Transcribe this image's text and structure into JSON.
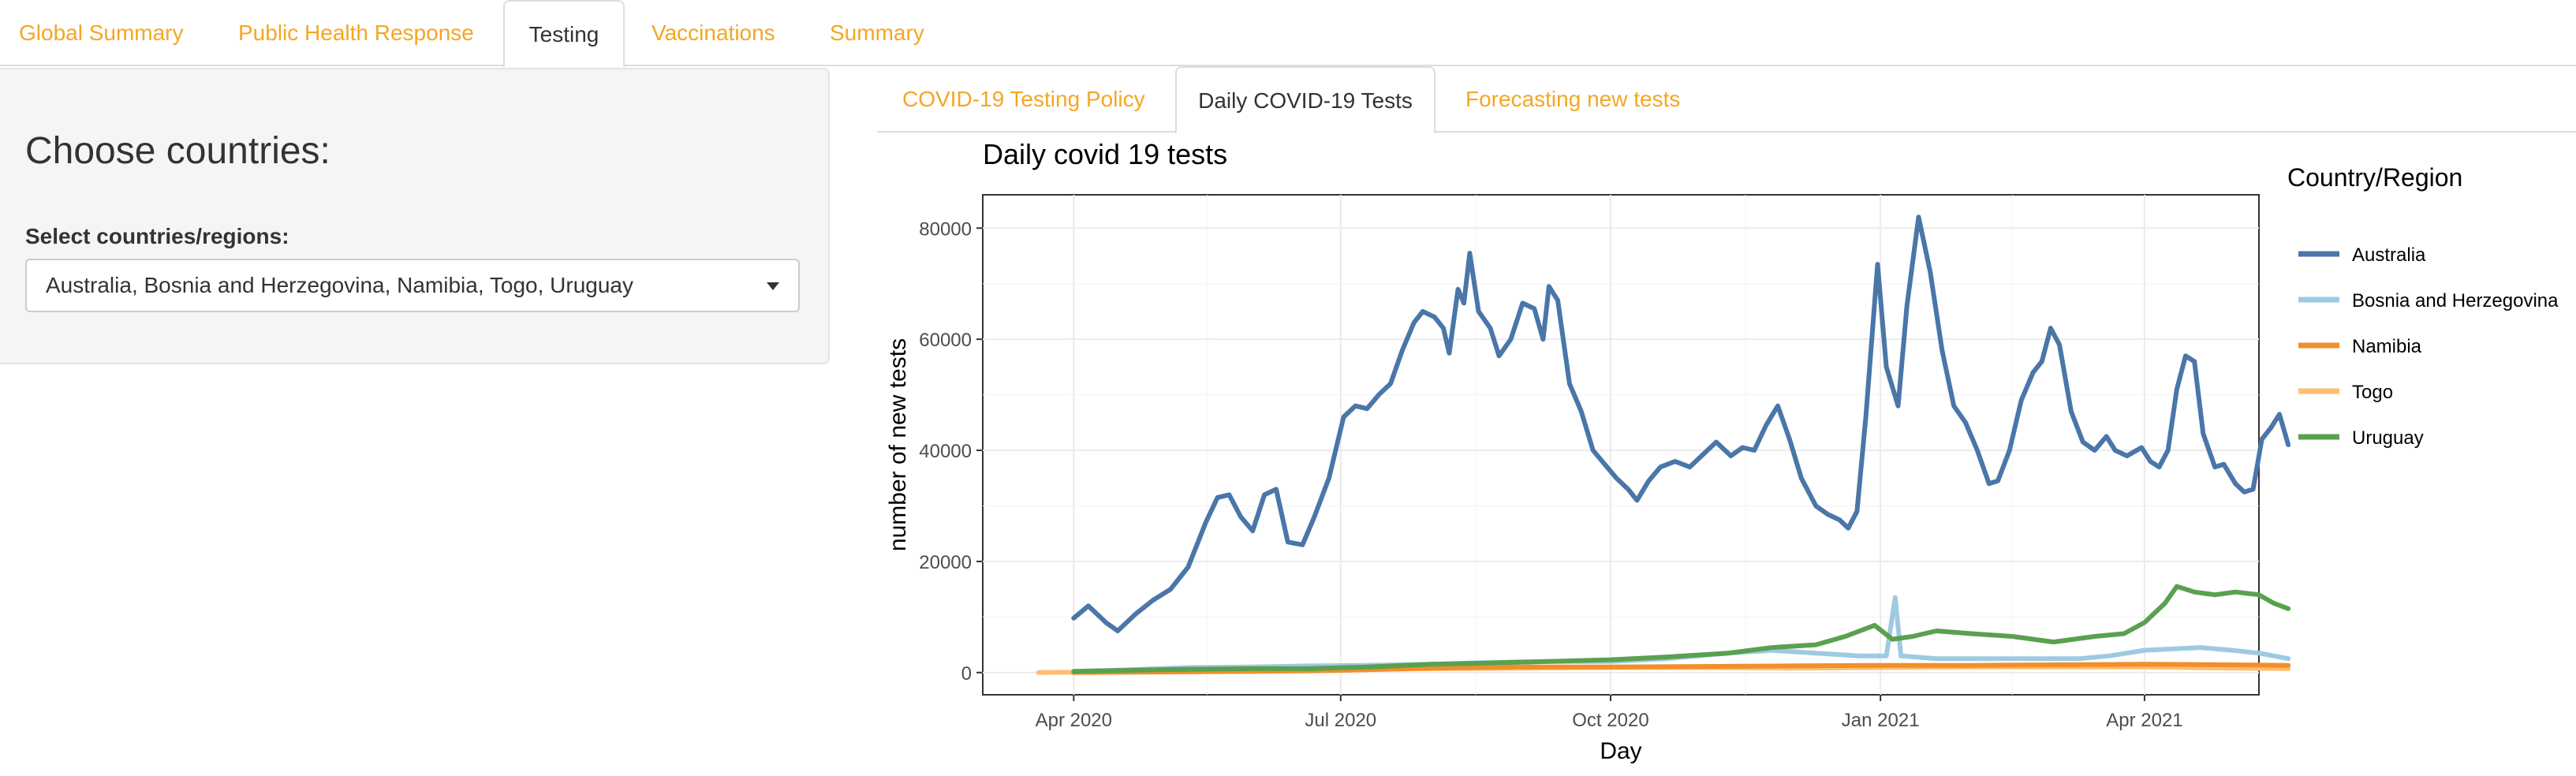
{
  "nav": {
    "tabs": [
      {
        "label": "Global Summary",
        "active": false
      },
      {
        "label": "Public Health Response",
        "active": false
      },
      {
        "label": "Testing",
        "active": true
      },
      {
        "label": "Vaccinations",
        "active": false
      },
      {
        "label": "Summary",
        "active": false
      }
    ]
  },
  "sidebar": {
    "heading": "Choose countries:",
    "select_label": "Select countries/regions:",
    "select_value": "Australia, Bosnia and Herzegovina, Namibia, Togo, Uruguay"
  },
  "subnav": {
    "tabs": [
      {
        "label": "COVID-19 Testing Policy",
        "active": false
      },
      {
        "label": "Daily COVID-19 Tests",
        "active": true
      },
      {
        "label": "Forecasting new tests",
        "active": false
      }
    ]
  },
  "colors": {
    "accent": "#f5a623",
    "panel_background": "#ffffff",
    "grid": "#ebebeb"
  },
  "chart_data": {
    "type": "line",
    "title": "Daily covid 19 tests",
    "xlabel": "Day",
    "ylabel": "number of new tests",
    "xlim": [
      "2020-03-01",
      "2021-05-10"
    ],
    "ylim": [
      -4000,
      86000
    ],
    "x_ticks": [
      {
        "date": "2020-04-01",
        "label": "Apr 2020"
      },
      {
        "date": "2020-07-01",
        "label": "Jul 2020"
      },
      {
        "date": "2020-10-01",
        "label": "Oct 2020"
      },
      {
        "date": "2021-01-01",
        "label": "Jan 2021"
      },
      {
        "date": "2021-04-01",
        "label": "Apr 2021"
      }
    ],
    "y_ticks": [
      0,
      20000,
      40000,
      60000,
      80000
    ],
    "y_tick_labels": [
      "0",
      "20000",
      "40000",
      "60000",
      "80000"
    ],
    "grid": true,
    "legend": {
      "title": "Country/Region",
      "placement": "right"
    },
    "series": [
      {
        "name": "Australia",
        "color": "#4a76a8",
        "points": [
          [
            "2020-04-01",
            9800
          ],
          [
            "2020-04-06",
            12000
          ],
          [
            "2020-04-12",
            9000
          ],
          [
            "2020-04-16",
            7500
          ],
          [
            "2020-04-22",
            10500
          ],
          [
            "2020-04-28",
            13000
          ],
          [
            "2020-05-04",
            15000
          ],
          [
            "2020-05-10",
            19000
          ],
          [
            "2020-05-16",
            27000
          ],
          [
            "2020-05-20",
            31500
          ],
          [
            "2020-05-24",
            32000
          ],
          [
            "2020-05-28",
            28000
          ],
          [
            "2020-06-01",
            25500
          ],
          [
            "2020-06-05",
            32000
          ],
          [
            "2020-06-09",
            33000
          ],
          [
            "2020-06-13",
            23500
          ],
          [
            "2020-06-18",
            23000
          ],
          [
            "2020-06-22",
            28000
          ],
          [
            "2020-06-27",
            35000
          ],
          [
            "2020-07-02",
            46000
          ],
          [
            "2020-07-06",
            48000
          ],
          [
            "2020-07-10",
            47500
          ],
          [
            "2020-07-14",
            50000
          ],
          [
            "2020-07-18",
            52000
          ],
          [
            "2020-07-22",
            58000
          ],
          [
            "2020-07-26",
            63000
          ],
          [
            "2020-07-29",
            65000
          ],
          [
            "2020-08-02",
            64000
          ],
          [
            "2020-08-05",
            62000
          ],
          [
            "2020-08-07",
            57500
          ],
          [
            "2020-08-10",
            69000
          ],
          [
            "2020-08-12",
            66500
          ],
          [
            "2020-08-14",
            75500
          ],
          [
            "2020-08-17",
            65000
          ],
          [
            "2020-08-21",
            62000
          ],
          [
            "2020-08-24",
            57000
          ],
          [
            "2020-08-28",
            60000
          ],
          [
            "2020-09-01",
            66500
          ],
          [
            "2020-09-05",
            65500
          ],
          [
            "2020-09-08",
            60000
          ],
          [
            "2020-09-10",
            69500
          ],
          [
            "2020-09-13",
            67000
          ],
          [
            "2020-09-17",
            52000
          ],
          [
            "2020-09-21",
            47000
          ],
          [
            "2020-09-25",
            40000
          ],
          [
            "2020-09-29",
            37500
          ],
          [
            "2020-10-03",
            35000
          ],
          [
            "2020-10-07",
            33000
          ],
          [
            "2020-10-10",
            31000
          ],
          [
            "2020-10-14",
            34500
          ],
          [
            "2020-10-18",
            37000
          ],
          [
            "2020-10-23",
            38000
          ],
          [
            "2020-10-28",
            37000
          ],
          [
            "2020-11-02",
            39500
          ],
          [
            "2020-11-06",
            41500
          ],
          [
            "2020-11-11",
            39000
          ],
          [
            "2020-11-15",
            40500
          ],
          [
            "2020-11-19",
            40000
          ],
          [
            "2020-11-23",
            44500
          ],
          [
            "2020-11-27",
            48000
          ],
          [
            "2020-12-01",
            42000
          ],
          [
            "2020-12-05",
            35000
          ],
          [
            "2020-12-10",
            30000
          ],
          [
            "2020-12-14",
            28500
          ],
          [
            "2020-12-18",
            27500
          ],
          [
            "2020-12-21",
            26000
          ],
          [
            "2020-12-24",
            29000
          ],
          [
            "2020-12-27",
            46000
          ],
          [
            "2020-12-31",
            73500
          ],
          [
            "2021-01-03",
            55000
          ],
          [
            "2021-01-07",
            48000
          ],
          [
            "2021-01-10",
            66000
          ],
          [
            "2021-01-14",
            82000
          ],
          [
            "2021-01-18",
            72000
          ],
          [
            "2021-01-22",
            58000
          ],
          [
            "2021-01-26",
            48000
          ],
          [
            "2021-01-30",
            45000
          ],
          [
            "2021-02-03",
            40000
          ],
          [
            "2021-02-07",
            34000
          ],
          [
            "2021-02-10",
            34500
          ],
          [
            "2021-02-14",
            40000
          ],
          [
            "2021-02-18",
            49000
          ],
          [
            "2021-02-22",
            54000
          ],
          [
            "2021-02-25",
            56000
          ],
          [
            "2021-02-28",
            62000
          ],
          [
            "2021-03-03",
            59000
          ],
          [
            "2021-03-07",
            47000
          ],
          [
            "2021-03-11",
            41500
          ],
          [
            "2021-03-15",
            40000
          ],
          [
            "2021-03-19",
            42500
          ],
          [
            "2021-03-22",
            40000
          ],
          [
            "2021-03-26",
            39000
          ],
          [
            "2021-03-31",
            40500
          ],
          [
            "2021-04-03",
            38000
          ],
          [
            "2021-04-06",
            37000
          ],
          [
            "2021-04-09",
            40000
          ],
          [
            "2021-04-12",
            51000
          ],
          [
            "2021-04-15",
            57000
          ],
          [
            "2021-04-18",
            56000
          ],
          [
            "2021-04-21",
            43000
          ],
          [
            "2021-04-25",
            37000
          ],
          [
            "2021-04-28",
            37500
          ],
          [
            "2021-05-02",
            34000
          ],
          [
            "2021-05-05",
            32500
          ],
          [
            "2021-05-08",
            33000
          ],
          [
            "2021-05-11",
            42000
          ],
          [
            "2021-05-14",
            44000
          ],
          [
            "2021-05-17",
            46500
          ],
          [
            "2021-05-20",
            41000
          ]
        ]
      },
      {
        "name": "Bosnia and Herzegovina",
        "color": "#9ecae1",
        "points": [
          [
            "2020-04-01",
            200
          ],
          [
            "2020-04-20",
            500
          ],
          [
            "2020-05-10",
            900
          ],
          [
            "2020-06-01",
            1000
          ],
          [
            "2020-06-20",
            1200
          ],
          [
            "2020-07-10",
            1300
          ],
          [
            "2020-08-01",
            1500
          ],
          [
            "2020-08-20",
            1800
          ],
          [
            "2020-09-10",
            2000
          ],
          [
            "2020-10-01",
            2000
          ],
          [
            "2020-10-20",
            2500
          ],
          [
            "2020-11-10",
            3500
          ],
          [
            "2020-11-25",
            4000
          ],
          [
            "2020-12-10",
            3500
          ],
          [
            "2020-12-25",
            3000
          ],
          [
            "2021-01-03",
            3000
          ],
          [
            "2021-01-06",
            13500
          ],
          [
            "2021-01-08",
            3000
          ],
          [
            "2021-01-20",
            2500
          ],
          [
            "2021-02-05",
            2500
          ],
          [
            "2021-02-25",
            2500
          ],
          [
            "2021-03-10",
            2500
          ],
          [
            "2021-03-20",
            3000
          ],
          [
            "2021-04-01",
            4000
          ],
          [
            "2021-04-20",
            4500
          ],
          [
            "2021-05-01",
            4000
          ],
          [
            "2021-05-10",
            3500
          ],
          [
            "2021-05-20",
            2500
          ]
        ]
      },
      {
        "name": "Namibia",
        "color": "#f28e2b",
        "points": [
          [
            "2020-04-01",
            0
          ],
          [
            "2020-05-01",
            100
          ],
          [
            "2020-06-01",
            200
          ],
          [
            "2020-07-01",
            400
          ],
          [
            "2020-08-01",
            800
          ],
          [
            "2020-09-01",
            1000
          ],
          [
            "2020-10-01",
            1000
          ],
          [
            "2020-11-01",
            1100
          ],
          [
            "2020-12-01",
            1200
          ],
          [
            "2021-01-01",
            1300
          ],
          [
            "2021-02-01",
            1300
          ],
          [
            "2021-03-01",
            1400
          ],
          [
            "2021-04-01",
            1500
          ],
          [
            "2021-05-01",
            1400
          ],
          [
            "2021-05-20",
            1300
          ]
        ]
      },
      {
        "name": "Togo",
        "color": "#fdbf6f",
        "points": [
          [
            "2020-03-20",
            0
          ],
          [
            "2020-04-10",
            100
          ],
          [
            "2020-05-01",
            200
          ],
          [
            "2020-06-01",
            300
          ],
          [
            "2020-07-01",
            500
          ],
          [
            "2020-08-01",
            700
          ],
          [
            "2020-09-01",
            800
          ],
          [
            "2020-10-01",
            900
          ],
          [
            "2020-11-01",
            900
          ],
          [
            "2020-12-01",
            800
          ],
          [
            "2021-01-01",
            900
          ],
          [
            "2021-02-01",
            1000
          ],
          [
            "2021-03-01",
            1000
          ],
          [
            "2021-04-01",
            1000
          ],
          [
            "2021-05-01",
            800
          ],
          [
            "2021-05-20",
            700
          ]
        ]
      },
      {
        "name": "Uruguay",
        "color": "#59a14f",
        "points": [
          [
            "2020-04-01",
            200
          ],
          [
            "2020-04-20",
            400
          ],
          [
            "2020-05-10",
            600
          ],
          [
            "2020-06-01",
            700
          ],
          [
            "2020-06-20",
            700
          ],
          [
            "2020-07-10",
            1000
          ],
          [
            "2020-08-01",
            1500
          ],
          [
            "2020-08-20",
            1700
          ],
          [
            "2020-09-10",
            2000
          ],
          [
            "2020-10-01",
            2300
          ],
          [
            "2020-10-20",
            2800
          ],
          [
            "2020-11-10",
            3500
          ],
          [
            "2020-11-25",
            4500
          ],
          [
            "2020-12-10",
            5000
          ],
          [
            "2020-12-20",
            6500
          ],
          [
            "2020-12-30",
            8500
          ],
          [
            "2021-01-05",
            6000
          ],
          [
            "2021-01-12",
            6500
          ],
          [
            "2021-01-20",
            7500
          ],
          [
            "2021-02-01",
            7000
          ],
          [
            "2021-02-15",
            6500
          ],
          [
            "2021-03-01",
            5500
          ],
          [
            "2021-03-15",
            6500
          ],
          [
            "2021-03-25",
            7000
          ],
          [
            "2021-04-01",
            9000
          ],
          [
            "2021-04-08",
            12500
          ],
          [
            "2021-04-12",
            15500
          ],
          [
            "2021-04-18",
            14500
          ],
          [
            "2021-04-25",
            14000
          ],
          [
            "2021-05-02",
            14500
          ],
          [
            "2021-05-10",
            14000
          ],
          [
            "2021-05-15",
            12500
          ],
          [
            "2021-05-20",
            11500
          ]
        ]
      }
    ]
  }
}
